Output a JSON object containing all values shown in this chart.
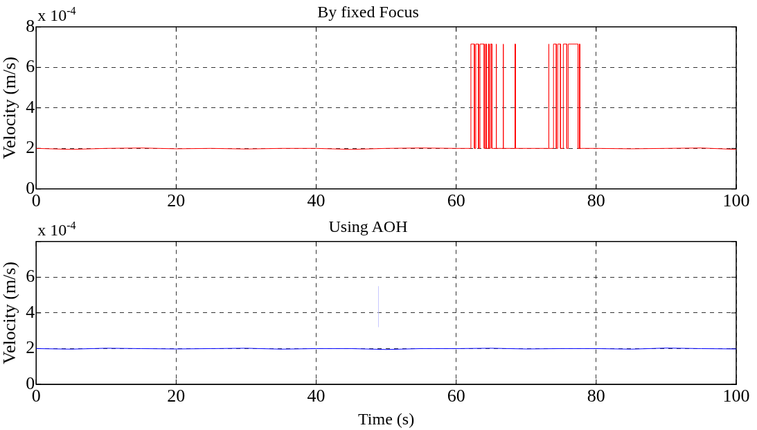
{
  "chart_data": [
    {
      "type": "line",
      "title": "By fixed Focus",
      "ylabel": "Velocity (m/s)",
      "annotations": [
        "x 10$^{-4}$"
      ],
      "xlim": [
        0,
        100
      ],
      "xticks": [
        0,
        20,
        40,
        60,
        80,
        100
      ],
      "ylim": [
        0,
        8
      ],
      "yticks": [
        0,
        2,
        4,
        6,
        8
      ],
      "grid": true,
      "marker": "none",
      "line_style": "solid",
      "series": [
        {
          "color": "#ff0000",
          "x": [
            0,
            5,
            10,
            15,
            20,
            25,
            30,
            35,
            40,
            45,
            50,
            55,
            60,
            62.1,
            62.1,
            62.6,
            62.6,
            62.8,
            62.8,
            63.2,
            63.2,
            63.4,
            63.4,
            64.0,
            64.0,
            64.2,
            64.2,
            64.3,
            64.3,
            64.6,
            64.6,
            64.7,
            64.7,
            64.9,
            64.9,
            65.1,
            65.1,
            65.7,
            65.7,
            65.75,
            65.75,
            66.7,
            66.7,
            66.75,
            66.75,
            68.4,
            68.4,
            68.45,
            68.45,
            70,
            73.2,
            73.2,
            73.25,
            73.25,
            73.9,
            73.9,
            74.3,
            74.3,
            74.5,
            74.5,
            74.9,
            74.9,
            75.3,
            75.3,
            75.8,
            75.8,
            76.0,
            76.0,
            77.4,
            77.4,
            77.6,
            77.6,
            77.65,
            77.65,
            80,
            85,
            90,
            95,
            100
          ],
          "values": [
            2.0,
            1.95,
            2.0,
            2.02,
            1.98,
            2.0,
            1.97,
            2.0,
            2.0,
            1.95,
            2.0,
            2.02,
            2.0,
            2.0,
            7.15,
            7.15,
            2.0,
            2.0,
            7.15,
            7.15,
            2.0,
            2.0,
            7.15,
            7.15,
            2.0,
            2.0,
            7.15,
            7.15,
            2.0,
            2.0,
            7.15,
            7.15,
            2.0,
            2.0,
            7.15,
            7.15,
            2.0,
            2.0,
            7.15,
            7.15,
            2.0,
            2.0,
            7.15,
            7.15,
            2.0,
            2.0,
            7.15,
            7.15,
            2.0,
            2.0,
            2.0,
            7.15,
            7.15,
            2.0,
            2.0,
            7.15,
            7.15,
            2.0,
            2.0,
            7.15,
            7.15,
            2.0,
            2.0,
            7.15,
            7.15,
            2.0,
            2.0,
            7.15,
            7.15,
            2.0,
            2.0,
            7.15,
            7.15,
            2.0,
            2.0,
            1.98,
            2.0,
            2.02,
            1.95
          ]
        }
      ]
    },
    {
      "type": "line",
      "title": "Using AOH",
      "xlabel": "Time (s)",
      "ylabel": "Velocity (m/s)",
      "annotations": [
        "x 10$^{-4}$"
      ],
      "xlim": [
        0,
        100
      ],
      "xticks": [
        0,
        20,
        40,
        60,
        80,
        100
      ],
      "ylim": [
        0,
        8
      ],
      "yticks": [
        0,
        2,
        4,
        6,
        {
          "value": 8,
          "label": null
        }
      ],
      "grid": true,
      "marker": "none",
      "line_style": "solid",
      "series": [
        {
          "color": "#0000ff",
          "x": [
            0,
            5,
            10,
            15,
            20,
            25,
            30,
            35,
            40,
            45,
            50,
            55,
            60,
            65,
            70,
            75,
            80,
            85,
            90,
            95,
            100
          ],
          "values": [
            2.0,
            1.97,
            2.02,
            2.0,
            1.98,
            2.0,
            2.02,
            1.97,
            2.0,
            2.0,
            1.95,
            2.0,
            2.0,
            2.02,
            1.98,
            2.0,
            2.0,
            1.97,
            2.03,
            2.0,
            1.98
          ]
        },
        {
          "color": "#c8c8ff",
          "x": [
            48.9,
            48.9
          ],
          "values": [
            3.2,
            5.5
          ]
        }
      ]
    }
  ]
}
